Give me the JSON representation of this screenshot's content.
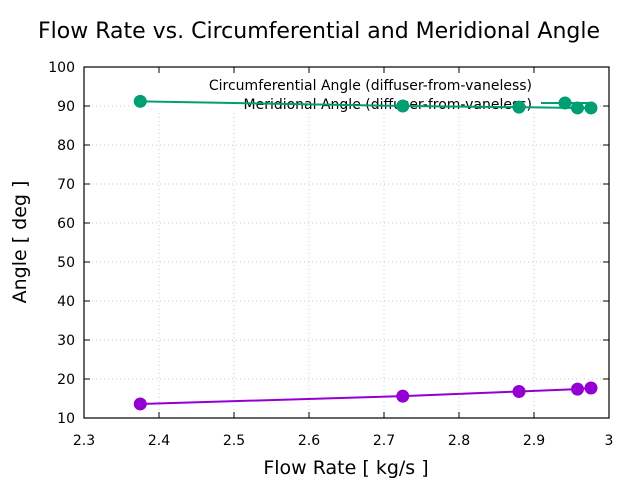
{
  "chart_data": {
    "type": "line",
    "title": "Flow Rate vs. Circumferential and Meridional Angle",
    "xlabel": "Flow Rate [ kg/s ]",
    "ylabel": "Angle [ deg ]",
    "xlim": [
      2.3,
      3.0
    ],
    "ylim": [
      10,
      100
    ],
    "xticks": [
      2.3,
      2.4,
      2.5,
      2.6,
      2.7,
      2.8,
      2.9,
      3.0
    ],
    "xtick_labels": [
      "2.3",
      "2.4",
      "2.5",
      "2.6",
      "2.7",
      "2.8",
      "2.9",
      "3"
    ],
    "yticks": [
      10,
      20,
      30,
      40,
      50,
      60,
      70,
      80,
      90,
      100
    ],
    "ytick_labels": [
      "10",
      "20",
      "30",
      "40",
      "50",
      "60",
      "70",
      "80",
      "90",
      "100"
    ],
    "grid": true,
    "legend_position": "top-right",
    "series": [
      {
        "name": "Circumferential Angle (diffuser-from-vaneless)",
        "color": "#9400d3",
        "x": [
          2.375,
          2.725,
          2.88,
          2.958,
          2.976
        ],
        "y": [
          13.6,
          15.6,
          16.8,
          17.4,
          17.7
        ]
      },
      {
        "name": "Meridional Angle (diffuser-from-vaneless)",
        "color": "#009e73",
        "x": [
          2.375,
          2.725,
          2.88,
          2.958,
          2.976
        ],
        "y": [
          91.2,
          90.0,
          89.7,
          89.5,
          89.5
        ]
      }
    ]
  }
}
